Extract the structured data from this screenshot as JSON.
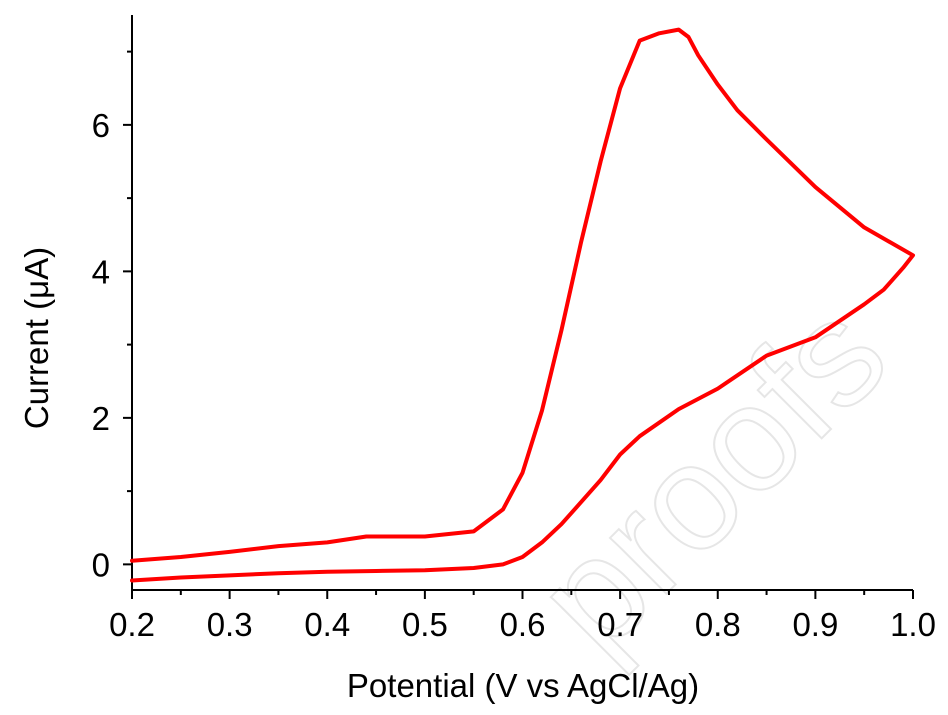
{
  "watermark": "proofs",
  "chart_data": {
    "type": "line",
    "title": "",
    "xlabel": "Potential (V vs AgCl/Ag)",
    "ylabel": "Current (μA)",
    "xlim": [
      0.2,
      1.0
    ],
    "ylim": [
      -0.35,
      7.5
    ],
    "xticks": [
      "0.2",
      "0.3",
      "0.4",
      "0.5",
      "0.6",
      "0.7",
      "0.8",
      "0.9",
      "1.0"
    ],
    "yticks": [
      "0",
      "2",
      "4",
      "6"
    ],
    "grid": false,
    "line_color": "#ff0000",
    "series": [
      {
        "x": [
          0.2,
          0.25,
          0.3,
          0.35,
          0.4,
          0.44,
          0.5,
          0.55,
          0.58,
          0.6,
          0.62,
          0.64,
          0.66,
          0.68,
          0.7,
          0.72,
          0.74,
          0.76,
          0.77,
          0.78,
          0.8,
          0.82,
          0.85,
          0.9,
          0.95,
          1.0,
          0.99,
          0.97,
          0.95,
          0.9,
          0.85,
          0.8,
          0.76,
          0.72,
          0.7,
          0.68,
          0.66,
          0.64,
          0.62,
          0.6,
          0.58,
          0.55,
          0.5,
          0.45,
          0.4,
          0.35,
          0.3,
          0.25,
          0.2
        ],
        "y": [
          0.05,
          0.1,
          0.17,
          0.25,
          0.3,
          0.38,
          0.38,
          0.45,
          0.75,
          1.25,
          2.1,
          3.2,
          4.4,
          5.5,
          6.5,
          7.15,
          7.25,
          7.3,
          7.2,
          6.95,
          6.55,
          6.2,
          5.8,
          5.15,
          4.6,
          4.22,
          4.05,
          3.75,
          3.55,
          3.1,
          2.85,
          2.4,
          2.12,
          1.75,
          1.5,
          1.15,
          0.85,
          0.55,
          0.3,
          0.1,
          0.0,
          -0.05,
          -0.08,
          -0.09,
          -0.1,
          -0.12,
          -0.15,
          -0.18,
          -0.22
        ]
      }
    ]
  }
}
